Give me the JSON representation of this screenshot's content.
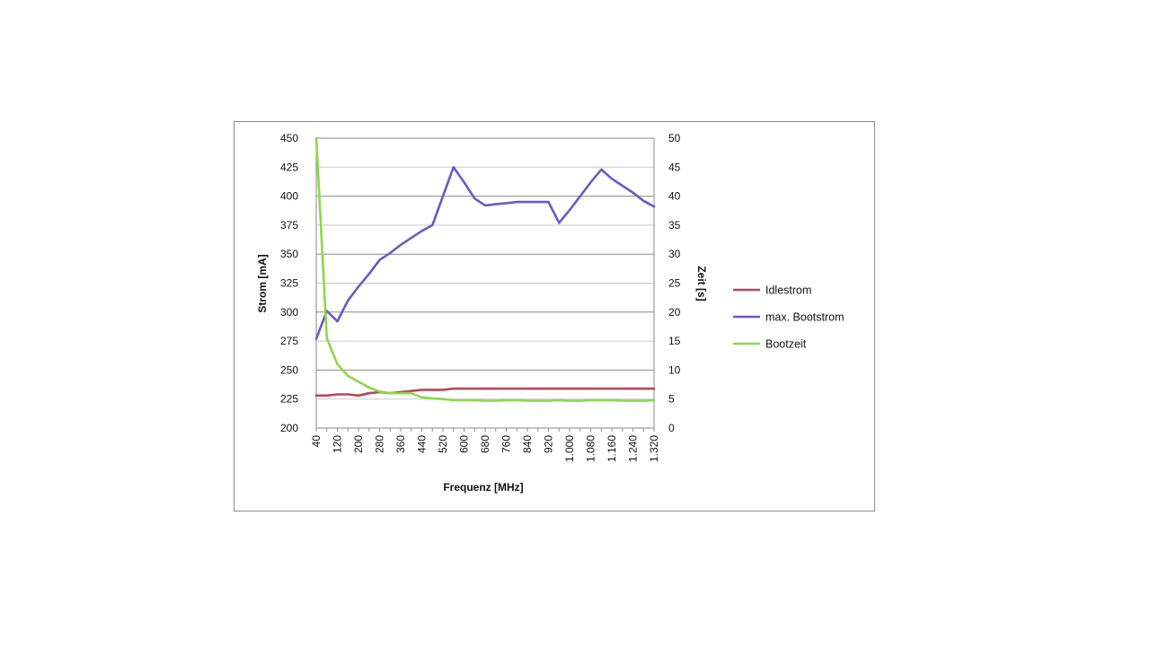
{
  "chart_data": {
    "type": "line",
    "x_title": "Frequenz [MHz]",
    "y_left_title": "Strom [mA]",
    "y_right_title": "Zeit [s]",
    "y_left_range": [
      200,
      450
    ],
    "y_left_ticks": [
      "200",
      "225",
      "250",
      "275",
      "300",
      "325",
      "350",
      "375",
      "400",
      "425",
      "450"
    ],
    "y_right_range": [
      0,
      50
    ],
    "y_right_ticks": [
      "0",
      "5",
      "10",
      "15",
      "20",
      "25",
      "30",
      "35",
      "40",
      "45",
      "50"
    ],
    "grid": true,
    "legend_position": "right",
    "x": [
      40,
      80,
      120,
      160,
      200,
      240,
      280,
      320,
      360,
      400,
      440,
      480,
      520,
      560,
      600,
      640,
      680,
      720,
      760,
      800,
      840,
      880,
      920,
      960,
      1000,
      1040,
      1080,
      1120,
      1160,
      1200,
      1240,
      1280,
      1320
    ],
    "x_tick_labels": [
      "40",
      "120",
      "200",
      "280",
      "360",
      "440",
      "520",
      "600",
      "680",
      "760",
      "840",
      "920",
      "1.000",
      "1.080",
      "1.160",
      "1.240",
      "1.320"
    ],
    "series": [
      {
        "name": "Idlestrom",
        "axis": "left",
        "color": "#b5475a",
        "values": [
          228,
          228,
          229,
          229,
          228,
          230,
          231,
          230,
          231,
          232,
          233,
          233,
          233,
          234,
          234,
          234,
          234,
          234,
          234,
          234,
          234,
          234,
          234,
          234,
          234,
          234,
          234,
          234,
          234,
          234,
          234,
          234,
          234
        ]
      },
      {
        "name": "max. Bootstrom",
        "axis": "left",
        "color": "#6f57c8",
        "values": [
          277,
          301,
          292,
          310,
          322,
          333,
          345,
          351,
          358,
          364,
          370,
          375,
          400,
          425,
          412,
          398,
          392,
          393,
          394,
          395,
          395,
          395,
          395,
          377,
          388,
          400,
          412,
          423,
          415,
          409,
          403,
          396,
          391
        ]
      },
      {
        "name": "Bootzeit",
        "axis": "right",
        "color": "#8ed64a",
        "values": [
          50,
          15.5,
          11,
          9,
          8,
          7,
          6.3,
          6,
          6,
          6,
          5.3,
          5.1,
          5,
          4.8,
          4.8,
          4.8,
          4.7,
          4.7,
          4.8,
          4.8,
          4.7,
          4.7,
          4.7,
          4.8,
          4.7,
          4.7,
          4.8,
          4.8,
          4.8,
          4.7,
          4.7,
          4.7,
          4.8
        ]
      }
    ]
  }
}
